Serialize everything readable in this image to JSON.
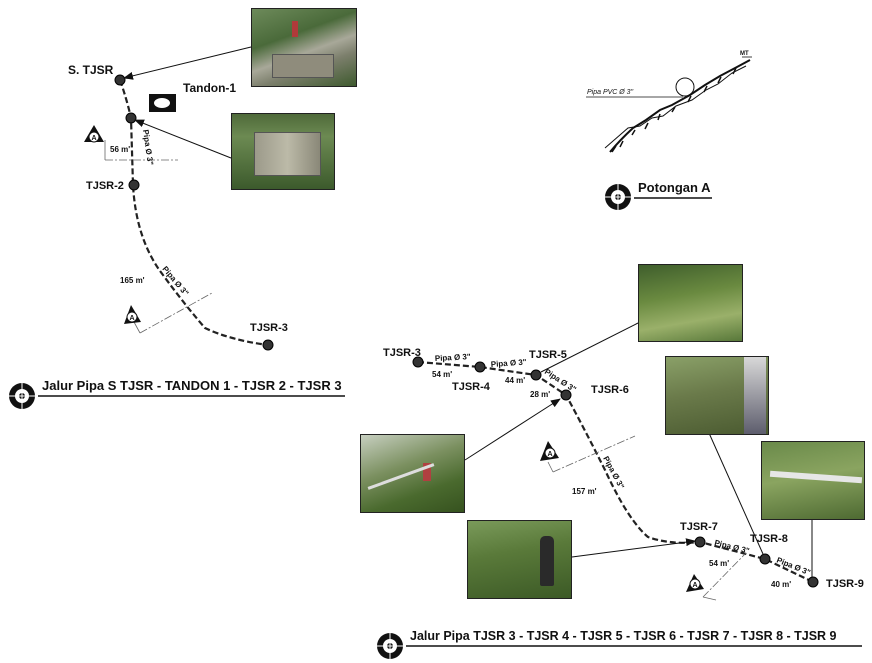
{
  "diagram1": {
    "title": "Jalur Pipa  S TJSR - TANDON 1 - TJSR 2 - TJSR 3",
    "nodes": {
      "stjsr": "S. TJSR",
      "tandon": "Tandon-1",
      "tjsr2": "TJSR-2",
      "tjsr3": "TJSR-3"
    },
    "pipe_labels": {
      "seg1": "Pipa Ø 3\"",
      "seg2": "Pipa Ø 3\""
    },
    "distances": {
      "d1": "56 m'",
      "d2": "165 m'"
    },
    "section_marker": "A"
  },
  "section": {
    "title": "Potongan A",
    "pipe_label": "Pipa PVC Ø 3\"",
    "mt_label": "MT"
  },
  "diagram2": {
    "title": "Jalur Pipa  TJSR 3 - TJSR 4 - TJSR 5 - TJSR 6 - TJSR 7 - TJSR 8 - TJSR 9",
    "nodes": {
      "tjsr3": "TJSR-3",
      "tjsr4": "TJSR-4",
      "tjsr5": "TJSR-5",
      "tjsr6": "TJSR-6",
      "tjsr7": "TJSR-7",
      "tjsr8": "TJSR-8",
      "tjsr9": "TJSR-9"
    },
    "pipe_labels": {
      "p34": "Pipa Ø 3\"",
      "p45": "Pipa Ø 3\"",
      "p56": "Pipa Ø 3\"",
      "p67": "Pipa Ø 3\"",
      "p78": "Pipa Ø 3\"",
      "p89": "Pipa Ø 3\""
    },
    "distances": {
      "d34": "54 m'",
      "d45": "44 m'",
      "d56": "28 m'",
      "d67": "157 m'",
      "d78": "54 m'",
      "d89": "40 m'"
    },
    "section_marker": "A"
  }
}
